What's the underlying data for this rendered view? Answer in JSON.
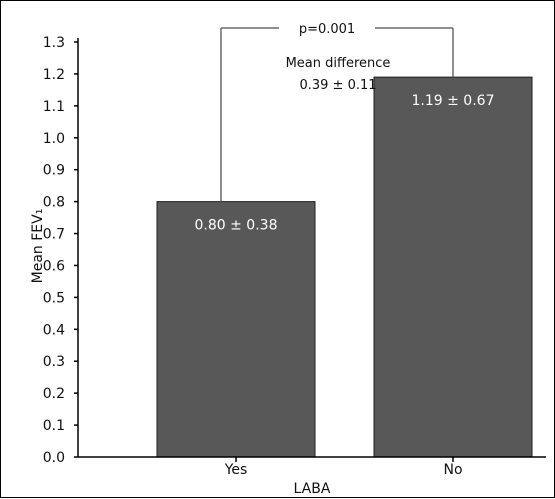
{
  "chart_data": {
    "type": "bar",
    "xlabel": "LABA",
    "ylabel": "Mean FEV₁",
    "categories": [
      "Yes",
      "No"
    ],
    "values": [
      0.8,
      1.19
    ],
    "value_labels": [
      "0.80 ± 0.38",
      "1.19 ± 0.67"
    ],
    "ylim": [
      0,
      1.3
    ],
    "yticks": [
      "0.0",
      "0.1",
      "0.2",
      "0.3",
      "0.4",
      "0.5",
      "0.6",
      "0.7",
      "0.8",
      "0.9",
      "1.0",
      "1.1",
      "1.2",
      "1.3"
    ],
    "grid": false,
    "bar_color": "#585858",
    "annotations": {
      "p_value": "p=0.001",
      "diff_title": "Mean difference",
      "diff_value": "0.39 ± 0.11"
    }
  }
}
